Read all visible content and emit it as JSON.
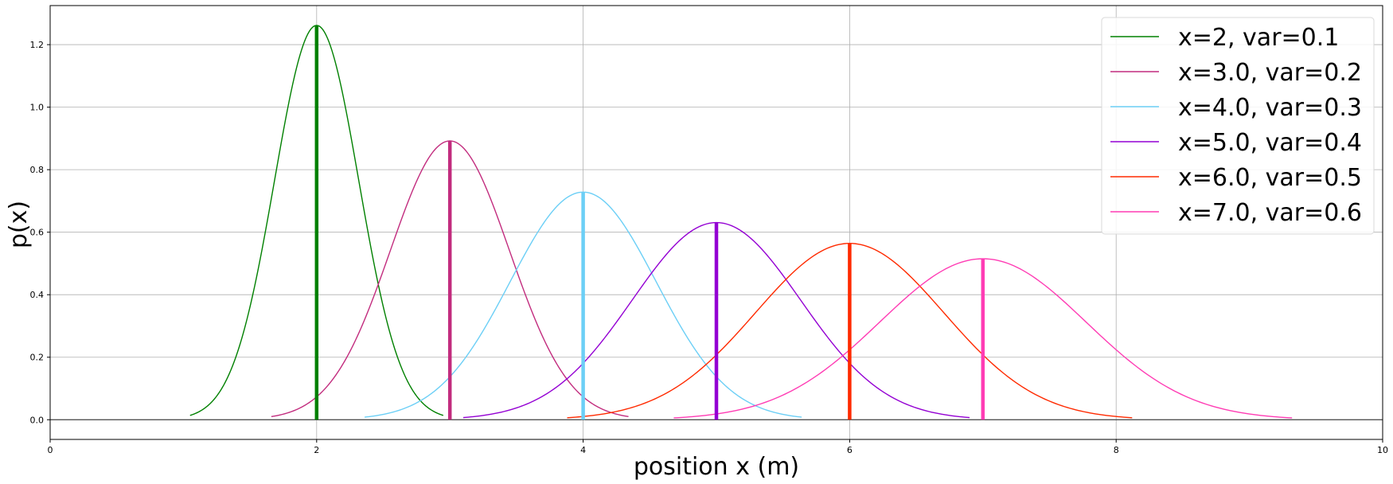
{
  "chart_data": {
    "type": "line",
    "title": "",
    "xlabel": "position x (m)",
    "ylabel": "p(x)",
    "xlim": [
      0,
      10
    ],
    "ylim": [
      -0.063,
      1.325
    ],
    "xticks": [
      0,
      2,
      4,
      6,
      8,
      10
    ],
    "yticks": [
      0.0,
      0.2,
      0.4,
      0.6,
      0.8,
      1.0,
      1.2
    ],
    "xtick_labels": [
      "0",
      "2",
      "4",
      "6",
      "8",
      "10"
    ],
    "ytick_labels": [
      "0.0",
      "0.2",
      "0.4",
      "0.6",
      "0.8",
      "1.0",
      "1.2"
    ],
    "grid": true,
    "legend_position": "top-right",
    "baseline": 0,
    "series": [
      {
        "name": "x=2, var=0.1",
        "mean": 2.0,
        "variance": 0.1,
        "x_range": [
          1.05,
          2.95
        ],
        "color": "#008000"
      },
      {
        "name": "x=3.0, var=0.2",
        "mean": 3.0,
        "variance": 0.2,
        "x_range": [
          1.66,
          4.34
        ],
        "color": "#c22c7e"
      },
      {
        "name": "x=4.0, var=0.3",
        "mean": 4.0,
        "variance": 0.3,
        "x_range": [
          2.36,
          5.64
        ],
        "color": "#6ccff6"
      },
      {
        "name": "x=5.0, var=0.4",
        "mean": 5.0,
        "variance": 0.4,
        "x_range": [
          3.1,
          6.9
        ],
        "color": "#9400d3"
      },
      {
        "name": "x=6.0, var=0.5",
        "mean": 6.0,
        "variance": 0.5,
        "x_range": [
          3.88,
          8.12
        ],
        "color": "#ff2a00"
      },
      {
        "name": "x=7.0, var=0.6",
        "mean": 7.0,
        "variance": 0.6,
        "x_range": [
          4.68,
          9.32
        ],
        "color": "#ff3cb4"
      }
    ]
  }
}
